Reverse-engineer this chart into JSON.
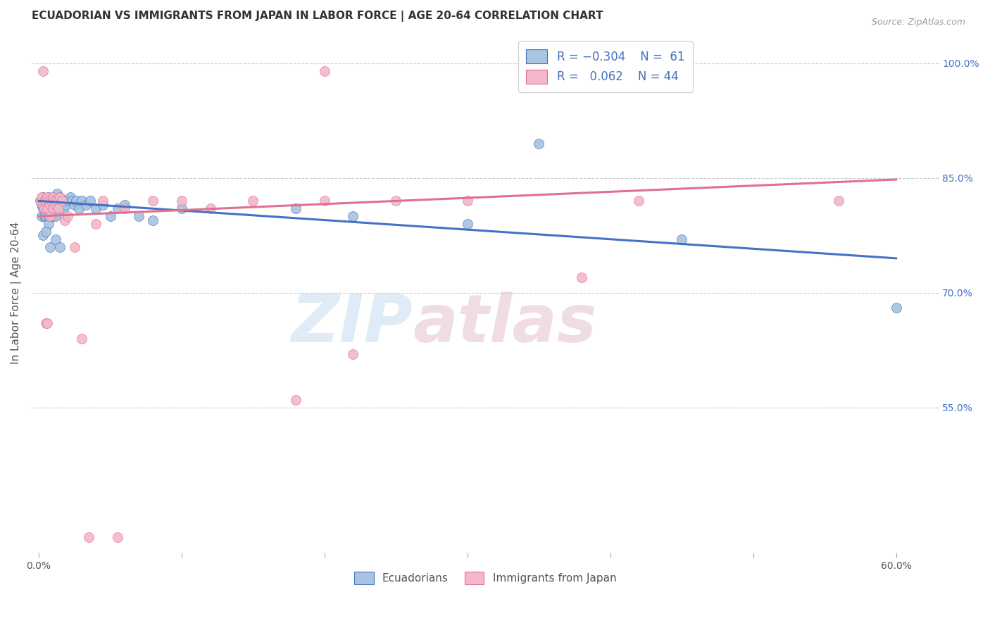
{
  "title": "ECUADORIAN VS IMMIGRANTS FROM JAPAN IN LABOR FORCE | AGE 20-64 CORRELATION CHART",
  "source": "Source: ZipAtlas.com",
  "ylabel": "In Labor Force | Age 20-64",
  "xlim": [
    -0.005,
    0.63
  ],
  "ylim": [
    0.36,
    1.04
  ],
  "watermark_zip": "ZIP",
  "watermark_atlas": "atlas",
  "color_blue": "#a8c4e0",
  "color_pink": "#f2b8ca",
  "trendline_blue": "#4472C4",
  "trendline_pink": "#e07090",
  "grid_color": "#cccccc",
  "background_color": "#ffffff",
  "blue_scatter": [
    [
      0.001,
      0.82
    ],
    [
      0.002,
      0.815
    ],
    [
      0.002,
      0.8
    ],
    [
      0.003,
      0.825
    ],
    [
      0.003,
      0.81
    ],
    [
      0.004,
      0.82
    ],
    [
      0.004,
      0.8
    ],
    [
      0.005,
      0.815
    ],
    [
      0.005,
      0.8
    ],
    [
      0.006,
      0.82
    ],
    [
      0.006,
      0.81
    ],
    [
      0.007,
      0.825
    ],
    [
      0.007,
      0.8
    ],
    [
      0.007,
      0.79
    ],
    [
      0.008,
      0.82
    ],
    [
      0.008,
      0.81
    ],
    [
      0.009,
      0.815
    ],
    [
      0.009,
      0.8
    ],
    [
      0.01,
      0.82
    ],
    [
      0.01,
      0.8
    ],
    [
      0.011,
      0.825
    ],
    [
      0.011,
      0.81
    ],
    [
      0.012,
      0.82
    ],
    [
      0.012,
      0.8
    ],
    [
      0.013,
      0.83
    ],
    [
      0.013,
      0.815
    ],
    [
      0.014,
      0.82
    ],
    [
      0.015,
      0.825
    ],
    [
      0.015,
      0.81
    ],
    [
      0.016,
      0.82
    ],
    [
      0.017,
      0.81
    ],
    [
      0.018,
      0.82
    ],
    [
      0.019,
      0.815
    ],
    [
      0.02,
      0.82
    ],
    [
      0.022,
      0.825
    ],
    [
      0.023,
      0.82
    ],
    [
      0.025,
      0.815
    ],
    [
      0.026,
      0.82
    ],
    [
      0.028,
      0.81
    ],
    [
      0.03,
      0.82
    ],
    [
      0.033,
      0.815
    ],
    [
      0.036,
      0.82
    ],
    [
      0.04,
      0.81
    ],
    [
      0.045,
      0.815
    ],
    [
      0.05,
      0.8
    ],
    [
      0.055,
      0.81
    ],
    [
      0.06,
      0.815
    ],
    [
      0.07,
      0.8
    ],
    [
      0.08,
      0.795
    ],
    [
      0.1,
      0.81
    ],
    [
      0.003,
      0.775
    ],
    [
      0.005,
      0.78
    ],
    [
      0.008,
      0.76
    ],
    [
      0.012,
      0.77
    ],
    [
      0.015,
      0.76
    ],
    [
      0.35,
      0.895
    ],
    [
      0.18,
      0.81
    ],
    [
      0.22,
      0.8
    ],
    [
      0.3,
      0.79
    ],
    [
      0.45,
      0.77
    ],
    [
      0.6,
      0.68
    ]
  ],
  "pink_scatter": [
    [
      0.001,
      0.82
    ],
    [
      0.002,
      0.825
    ],
    [
      0.003,
      0.815
    ],
    [
      0.004,
      0.82
    ],
    [
      0.004,
      0.81
    ],
    [
      0.005,
      0.82
    ],
    [
      0.006,
      0.825
    ],
    [
      0.006,
      0.81
    ],
    [
      0.007,
      0.82
    ],
    [
      0.008,
      0.815
    ],
    [
      0.008,
      0.8
    ],
    [
      0.009,
      0.82
    ],
    [
      0.01,
      0.825
    ],
    [
      0.01,
      0.81
    ],
    [
      0.011,
      0.82
    ],
    [
      0.012,
      0.815
    ],
    [
      0.013,
      0.82
    ],
    [
      0.014,
      0.81
    ],
    [
      0.015,
      0.825
    ],
    [
      0.016,
      0.82
    ],
    [
      0.018,
      0.795
    ],
    [
      0.02,
      0.8
    ],
    [
      0.003,
      0.99
    ],
    [
      0.005,
      0.66
    ],
    [
      0.006,
      0.66
    ],
    [
      0.2,
      0.99
    ],
    [
      0.04,
      0.79
    ],
    [
      0.06,
      0.81
    ],
    [
      0.08,
      0.82
    ],
    [
      0.12,
      0.81
    ],
    [
      0.15,
      0.82
    ],
    [
      0.2,
      0.82
    ],
    [
      0.25,
      0.82
    ],
    [
      0.3,
      0.82
    ],
    [
      0.03,
      0.64
    ],
    [
      0.025,
      0.76
    ],
    [
      0.045,
      0.82
    ],
    [
      0.56,
      0.82
    ],
    [
      0.42,
      0.82
    ],
    [
      0.18,
      0.56
    ],
    [
      0.22,
      0.62
    ],
    [
      0.035,
      0.38
    ],
    [
      0.055,
      0.38
    ],
    [
      0.38,
      0.72
    ],
    [
      0.1,
      0.82
    ]
  ],
  "blue_trend_x": [
    0.0,
    0.6
  ],
  "blue_trend_y": [
    0.82,
    0.745
  ],
  "pink_trend_x": [
    0.0,
    0.6
  ],
  "pink_trend_y": [
    0.8,
    0.848
  ],
  "y_tick_positions": [
    0.55,
    0.7,
    0.85,
    1.0
  ],
  "y_tick_labels": [
    "55.0%",
    "70.0%",
    "85.0%",
    "100.0%"
  ],
  "x_tick_positions": [
    0.0,
    0.1,
    0.2,
    0.3,
    0.4,
    0.5,
    0.6
  ],
  "x_tick_labels": [
    "0.0%",
    "",
    "",
    "",
    "",
    "",
    "60.0%"
  ]
}
